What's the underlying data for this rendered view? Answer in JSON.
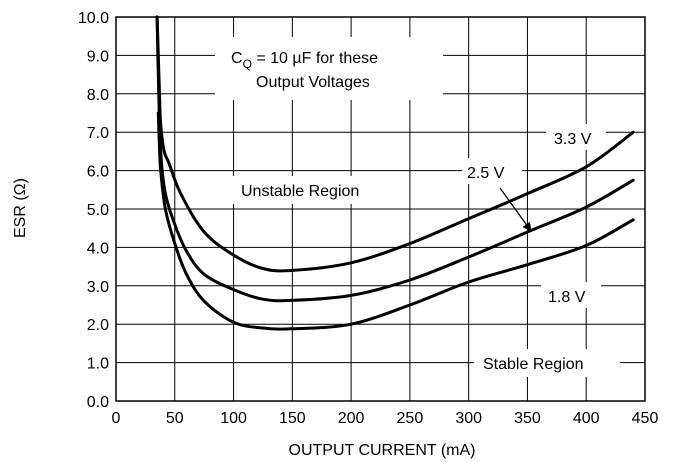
{
  "chart_data": {
    "type": "line",
    "title": "",
    "xlabel": "OUTPUT CURRENT (mA)",
    "ylabel": "ESR (Ω)",
    "xlim": [
      0,
      450
    ],
    "ylim": [
      0,
      10
    ],
    "x_ticks": [
      "0",
      "50",
      "100",
      "150",
      "200",
      "250",
      "300",
      "350",
      "400",
      "450"
    ],
    "y_ticks": [
      "0.0",
      "1.0",
      "2.0",
      "3.0",
      "4.0",
      "5.0",
      "6.0",
      "7.0",
      "8.0",
      "9.0",
      "10.0"
    ],
    "grid": true,
    "series": [
      {
        "name": "3.3 V",
        "x": [
          35,
          36,
          37,
          38,
          41,
          45,
          55,
          75,
          100,
          125,
          150,
          200,
          250,
          300,
          350,
          400,
          440
        ],
        "y": [
          10.0,
          9.0,
          8.0,
          7.2,
          6.5,
          6.2,
          5.4,
          4.4,
          3.8,
          3.45,
          3.4,
          3.6,
          4.1,
          4.75,
          5.4,
          6.1,
          7.0
        ]
      },
      {
        "name": "2.5 V",
        "x": [
          35,
          36,
          38,
          42,
          50,
          60,
          75,
          100,
          125,
          150,
          200,
          250,
          300,
          350,
          400,
          440
        ],
        "y": [
          10.0,
          8.5,
          6.5,
          5.4,
          4.6,
          3.9,
          3.3,
          2.9,
          2.65,
          2.62,
          2.75,
          3.15,
          3.75,
          4.4,
          5.05,
          5.75
        ]
      },
      {
        "name": "1.8 V",
        "x": [
          36,
          37,
          38,
          42,
          50,
          60,
          75,
          100,
          125,
          150,
          200,
          250,
          300,
          350,
          400,
          440
        ],
        "y": [
          7.5,
          6.6,
          6.0,
          5.0,
          4.1,
          3.3,
          2.6,
          2.05,
          1.9,
          1.88,
          2.0,
          2.5,
          3.1,
          3.55,
          4.05,
          4.72
        ]
      }
    ],
    "annotations": {
      "cq_note_main": "C",
      "cq_note_sub": "Q",
      "cq_note_rest": " = 10 µF for these",
      "cq_note_line2": "Output Voltages",
      "unstable": "Unstable Region",
      "stable": "Stable Region",
      "label_33": "3.3 V",
      "label_25": "2.5 V",
      "label_18": "1.8 V"
    }
  }
}
